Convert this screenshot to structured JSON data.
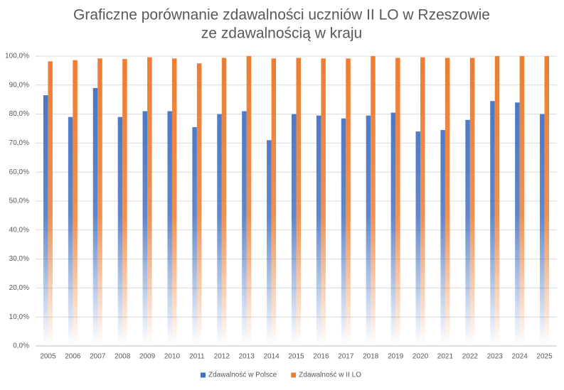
{
  "chart_data": {
    "type": "bar",
    "title": [
      "Graficzne porównanie zdawalności uczniów II LO w Rzeszowie",
      "ze zdawalnością w kraju"
    ],
    "categories": [
      "2005",
      "2006",
      "2007",
      "2008",
      "2009",
      "2010",
      "2011",
      "2012",
      "2013",
      "2014",
      "2015",
      "2016",
      "2017",
      "2018",
      "2019",
      "2020",
      "2021",
      "2022",
      "2023",
      "2024",
      "2025"
    ],
    "series": [
      {
        "name": "Zdawalność w Polsce",
        "color": "#4472c4",
        "values": [
          86.5,
          79,
          89,
          79,
          81,
          81,
          75.5,
          80,
          81,
          71,
          80,
          79.5,
          78.5,
          79.5,
          80.5,
          74,
          74.5,
          78,
          84.5,
          84,
          80
        ]
      },
      {
        "name": "Zdawalność w II LO",
        "color": "#ed7d31",
        "values": [
          98.2,
          98.6,
          99.2,
          99,
          99.6,
          99.2,
          97.5,
          99.4,
          100,
          99.2,
          99.4,
          99.2,
          99.2,
          100,
          99.4,
          99.6,
          99.4,
          99.4,
          100,
          100,
          100
        ]
      }
    ],
    "ylim": [
      0,
      100
    ],
    "yticks": [
      {
        "value": 0,
        "label": "0,0%"
      },
      {
        "value": 10,
        "label": "10,0%"
      },
      {
        "value": 20,
        "label": "20,0%"
      },
      {
        "value": 30,
        "label": "30,0%"
      },
      {
        "value": 40,
        "label": "40,0%"
      },
      {
        "value": 50,
        "label": "50,0%"
      },
      {
        "value": 60,
        "label": "60,0%"
      },
      {
        "value": 70,
        "label": "70,0%"
      },
      {
        "value": 80,
        "label": "80,0%"
      },
      {
        "value": 90,
        "label": "90,0%"
      },
      {
        "value": 100,
        "label": "100,0%"
      }
    ],
    "grid": true,
    "legend": "bottom",
    "fill": "gradient"
  }
}
